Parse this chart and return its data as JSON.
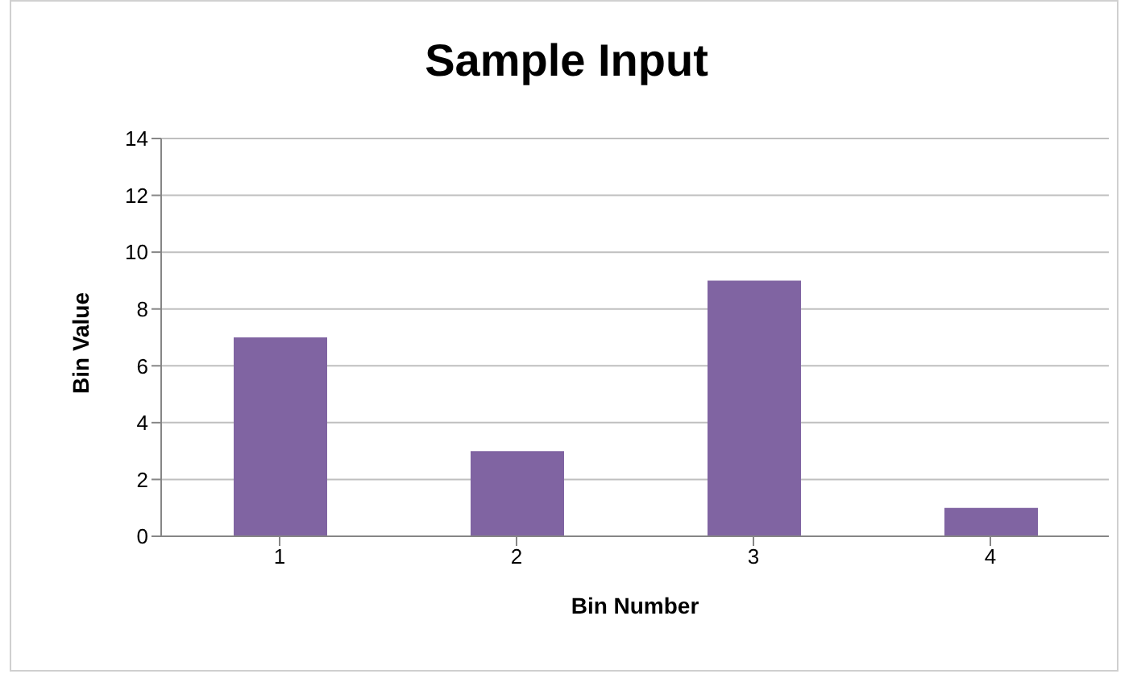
{
  "chart_data": {
    "type": "bar",
    "title": "Sample Input",
    "xlabel": "Bin Number",
    "ylabel": "Bin Value",
    "categories": [
      "1",
      "2",
      "3",
      "4"
    ],
    "values": [
      7,
      3,
      9,
      1
    ],
    "color": "#8064a2",
    "ylim": [
      0,
      14
    ],
    "yticks": [
      0,
      2,
      4,
      6,
      8,
      10,
      12,
      14
    ],
    "grid": "y",
    "legend": false
  }
}
